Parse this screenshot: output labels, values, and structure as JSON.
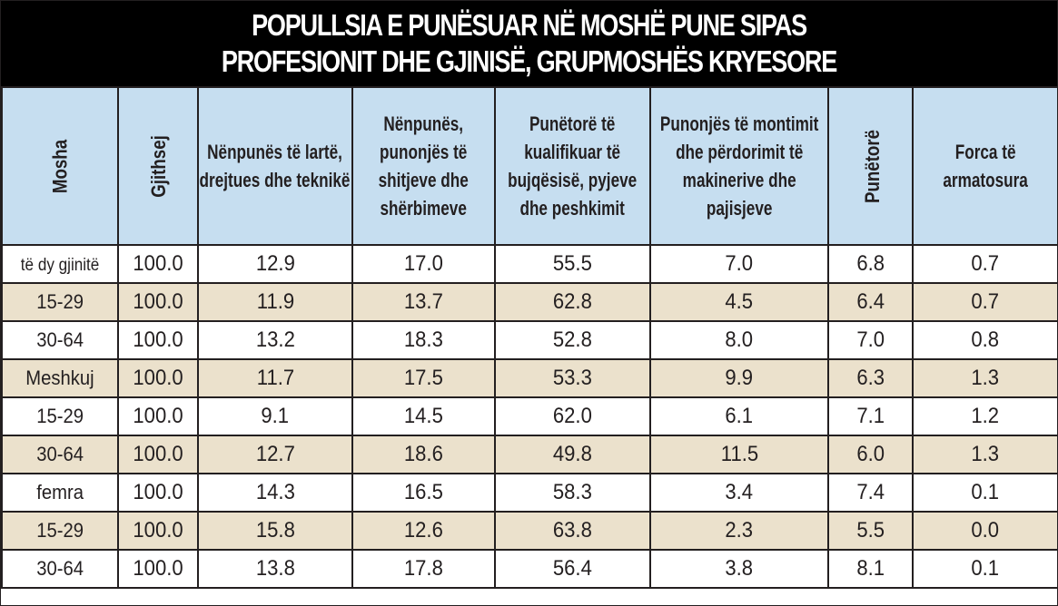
{
  "title": {
    "line1": "POPULLSIA E PUNËSUAR NË MOSHË PUNE SIPAS",
    "line2": "PROFESIONIT DHE GJINISË, GRUPMOSHËS KRYESORE"
  },
  "colors": {
    "header_bg": "#c6def0",
    "alt_row_bg": "#ebe1cc",
    "title_bg": "#000000",
    "border": "#231f20"
  },
  "table": {
    "headers": [
      "Mosha",
      "Gjithsej",
      "Nënpunës të lartë, drejtues dhe teknikë",
      "Nënpunës, punonjës të shitjeve dhe shërbimeve",
      "Punëtorë të kualifikuar të bujqësisë, pyjeve dhe peshkimit",
      "Punonjës të montimit dhe përdorimit të makinerive dhe pajisjeve",
      "Punëtorë",
      "Forca të armatosura"
    ],
    "rows": [
      [
        "të dy gjinitë",
        "100.0",
        "12.9",
        "17.0",
        "55.5",
        "7.0",
        "6.8",
        "0.7"
      ],
      [
        "15-29",
        "100.0",
        "11.9",
        "13.7",
        "62.8",
        "4.5",
        "6.4",
        "0.7"
      ],
      [
        "30-64",
        "100.0",
        "13.2",
        "18.3",
        "52.8",
        "8.0",
        "7.0",
        "0.8"
      ],
      [
        "Meshkuj",
        "100.0",
        "11.7",
        "17.5",
        "53.3",
        "9.9",
        "6.3",
        "1.3"
      ],
      [
        "15-29",
        "100.0",
        "9.1",
        "14.5",
        "62.0",
        "6.1",
        "7.1",
        "1.2"
      ],
      [
        "30-64",
        "100.0",
        "12.7",
        "18.6",
        "49.8",
        "11.5",
        "6.0",
        "1.3"
      ],
      [
        "femra",
        "100.0",
        "14.3",
        "16.5",
        "58.3",
        "3.4",
        "7.4",
        "0.1"
      ],
      [
        "15-29",
        "100.0",
        "15.8",
        "12.6",
        "63.8",
        "2.3",
        "5.5",
        "0.0"
      ],
      [
        "30-64",
        "100.0",
        "13.8",
        "17.8",
        "56.4",
        "3.8",
        "8.1",
        "0.1"
      ]
    ]
  },
  "chart_data": {
    "type": "table",
    "title": "POPULLSIA E PUNËSUAR NË MOSHË PUNE SIPAS PROFESIONIT DHE GJINISË, GRUPMOSHËS KRYESORE",
    "columns": [
      "Mosha",
      "Gjithsej",
      "Nënpunës të lartë, drejtues dhe teknikë",
      "Nënpunës, punonjës të shitjeve dhe shërbimeve",
      "Punëtorë të kualifikuar të bujqësisë, pyjeve dhe peshkimit",
      "Punonjës të montimit dhe përdorimit të makinerive dhe pajisjeve",
      "Punëtorë",
      "Forca të armatosura"
    ],
    "categories": [
      "të dy gjinitë",
      "15-29",
      "30-64",
      "Meshkuj",
      "15-29",
      "30-64",
      "femra",
      "15-29",
      "30-64"
    ],
    "series": [
      {
        "name": "Gjithsej",
        "values": [
          100.0,
          100.0,
          100.0,
          100.0,
          100.0,
          100.0,
          100.0,
          100.0,
          100.0
        ]
      },
      {
        "name": "Nënpunës të lartë, drejtues dhe teknikë",
        "values": [
          12.9,
          11.9,
          13.2,
          11.7,
          9.1,
          12.7,
          14.3,
          15.8,
          13.8
        ]
      },
      {
        "name": "Nënpunës, punonjës të shitjeve dhe shërbimeve",
        "values": [
          17.0,
          13.7,
          18.3,
          17.5,
          14.5,
          18.6,
          16.5,
          12.6,
          17.8
        ]
      },
      {
        "name": "Punëtorë të kualifikuar të bujqësisë, pyjeve dhe peshkimit",
        "values": [
          55.5,
          62.8,
          52.8,
          53.3,
          62.0,
          49.8,
          58.3,
          63.8,
          56.4
        ]
      },
      {
        "name": "Punonjës të montimit dhe përdorimit të makinerive dhe pajisjeve",
        "values": [
          7.0,
          4.5,
          8.0,
          9.9,
          6.1,
          11.5,
          3.4,
          2.3,
          3.8
        ]
      },
      {
        "name": "Punëtorë",
        "values": [
          6.8,
          6.4,
          7.0,
          6.3,
          7.1,
          6.0,
          7.4,
          5.5,
          8.1
        ]
      },
      {
        "name": "Forca të armatosura",
        "values": [
          0.7,
          0.7,
          0.8,
          1.3,
          1.2,
          1.3,
          0.1,
          0.0,
          0.1
        ]
      }
    ]
  }
}
